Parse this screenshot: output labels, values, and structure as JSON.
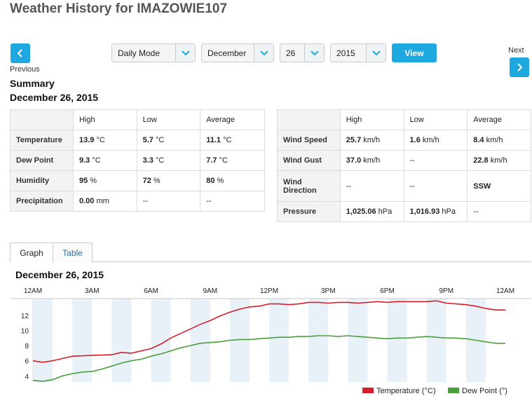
{
  "page": {
    "title": "Weather History for IMAZOWIE107"
  },
  "nav": {
    "previous_label": "Previous",
    "next_label": "Next"
  },
  "controls": {
    "mode": "Daily Mode",
    "month": "December",
    "day": "26",
    "year": "2015",
    "view_label": "View"
  },
  "summary": {
    "heading": "Summary",
    "date": "December 26, 2015",
    "left_table": {
      "headers": [
        "",
        "High",
        "Low",
        "Average"
      ],
      "rows": [
        {
          "label": "Temperature",
          "high": "13.9",
          "high_unit": "°C",
          "low": "5.7",
          "low_unit": "°C",
          "avg": "11.1",
          "avg_unit": "°C"
        },
        {
          "label": "Dew Point",
          "high": "9.3",
          "high_unit": "°C",
          "low": "3.3",
          "low_unit": "°C",
          "avg": "7.7",
          "avg_unit": "°C"
        },
        {
          "label": "Humidity",
          "high": "95",
          "high_unit": "%",
          "low": "72",
          "low_unit": "%",
          "avg": "80",
          "avg_unit": "%"
        },
        {
          "label": "Precipitation",
          "high": "0.00",
          "high_unit": "mm",
          "low": "--",
          "low_unit": "",
          "avg": "--",
          "avg_unit": ""
        }
      ]
    },
    "right_table": {
      "headers": [
        "",
        "High",
        "Low",
        "Average"
      ],
      "rows": [
        {
          "label": "Wind Speed",
          "high": "25.7",
          "high_unit": "km/h",
          "low": "1.6",
          "low_unit": "km/h",
          "avg": "8.4",
          "avg_unit": "km/h"
        },
        {
          "label": "Wind Gust",
          "high": "37.0",
          "high_unit": "km/h",
          "low": "--",
          "low_unit": "",
          "avg": "22.8",
          "avg_unit": "km/h"
        },
        {
          "label": "Wind Direction",
          "high": "--",
          "high_unit": "",
          "low": "--",
          "low_unit": "",
          "avg": "SSW",
          "avg_unit": ""
        },
        {
          "label": "Pressure",
          "high": "1,025.06",
          "high_unit": "hPa",
          "low": "1,016.93",
          "low_unit": "hPa",
          "avg": "--",
          "avg_unit": ""
        }
      ]
    }
  },
  "tabs": {
    "graph": "Graph",
    "table": "Table"
  },
  "graph": {
    "title": "December 26, 2015"
  },
  "colors": {
    "accent": "#1ea8e0",
    "temperature": "#d81e2a",
    "dew_point": "#4b9e3c",
    "band": "#e8f1f8"
  },
  "chart_data": {
    "type": "line",
    "title": "December 26, 2015",
    "x_tick_labels": [
      "12AM",
      "3AM",
      "6AM",
      "9AM",
      "12PM",
      "3PM",
      "6PM",
      "9PM",
      "12AM"
    ],
    "x_range_hours": [
      0,
      24
    ],
    "y_ticks": [
      4,
      6,
      8,
      10,
      12
    ],
    "ylim": [
      3.2,
      14.2
    ],
    "legend_position": "bottom-right",
    "series": [
      {
        "name": "Temperature (°C)",
        "color": "#d81e2a",
        "points": [
          [
            0,
            6.0
          ],
          [
            0.5,
            5.8
          ],
          [
            1,
            6.0
          ],
          [
            1.5,
            6.3
          ],
          [
            2,
            6.6
          ],
          [
            3,
            6.7
          ],
          [
            4,
            6.8
          ],
          [
            4.5,
            7.1
          ],
          [
            5,
            7.0
          ],
          [
            5.5,
            7.3
          ],
          [
            6,
            7.6
          ],
          [
            6.5,
            8.2
          ],
          [
            7,
            9.0
          ],
          [
            7.5,
            9.6
          ],
          [
            8,
            10.2
          ],
          [
            8.5,
            10.8
          ],
          [
            9,
            11.3
          ],
          [
            9.5,
            11.9
          ],
          [
            10,
            12.4
          ],
          [
            10.5,
            12.8
          ],
          [
            11,
            13.1
          ],
          [
            11.5,
            13.2
          ],
          [
            12,
            13.5
          ],
          [
            12.5,
            13.5
          ],
          [
            13,
            13.4
          ],
          [
            13.5,
            13.5
          ],
          [
            14,
            13.7
          ],
          [
            14.5,
            13.7
          ],
          [
            15,
            13.6
          ],
          [
            15.5,
            13.7
          ],
          [
            16,
            13.7
          ],
          [
            16.5,
            13.6
          ],
          [
            17,
            13.7
          ],
          [
            17.5,
            13.8
          ],
          [
            18,
            13.7
          ],
          [
            18.5,
            13.8
          ],
          [
            19,
            13.8
          ],
          [
            19.5,
            13.8
          ],
          [
            20,
            13.8
          ],
          [
            20.5,
            13.9
          ],
          [
            21,
            13.6
          ],
          [
            21.5,
            13.5
          ],
          [
            22,
            13.4
          ],
          [
            22.5,
            13.2
          ],
          [
            23,
            12.9
          ],
          [
            23.5,
            12.7
          ],
          [
            24,
            12.7
          ]
        ]
      },
      {
        "name": "Dew Point (°)",
        "color": "#4b9e3c",
        "points": [
          [
            0,
            3.4
          ],
          [
            0.5,
            3.3
          ],
          [
            1,
            3.5
          ],
          [
            1.5,
            4.0
          ],
          [
            2,
            4.3
          ],
          [
            2.5,
            4.5
          ],
          [
            3,
            4.6
          ],
          [
            3.5,
            4.9
          ],
          [
            4,
            5.3
          ],
          [
            4.5,
            5.7
          ],
          [
            5,
            6.0
          ],
          [
            5.5,
            6.2
          ],
          [
            6,
            6.6
          ],
          [
            6.5,
            6.9
          ],
          [
            7,
            7.3
          ],
          [
            7.5,
            7.7
          ],
          [
            8,
            8.0
          ],
          [
            8.5,
            8.3
          ],
          [
            9,
            8.4
          ],
          [
            9.5,
            8.5
          ],
          [
            10,
            8.7
          ],
          [
            10.5,
            8.8
          ],
          [
            11,
            8.8
          ],
          [
            11.5,
            8.9
          ],
          [
            12,
            9.0
          ],
          [
            12.5,
            9.1
          ],
          [
            13,
            9.1
          ],
          [
            13.5,
            9.2
          ],
          [
            14,
            9.2
          ],
          [
            14.5,
            9.3
          ],
          [
            15,
            9.3
          ],
          [
            15.5,
            9.2
          ],
          [
            16,
            9.3
          ],
          [
            16.5,
            9.2
          ],
          [
            17,
            9.1
          ],
          [
            17.5,
            9.0
          ],
          [
            18,
            8.9
          ],
          [
            18.5,
            9.0
          ],
          [
            19,
            9.0
          ],
          [
            19.5,
            9.1
          ],
          [
            20,
            9.2
          ],
          [
            20.5,
            9.1
          ],
          [
            21,
            9.0
          ],
          [
            21.5,
            9.0
          ],
          [
            22,
            8.9
          ],
          [
            22.5,
            8.7
          ],
          [
            23,
            8.5
          ],
          [
            23.5,
            8.3
          ],
          [
            24,
            8.3
          ]
        ]
      }
    ]
  }
}
